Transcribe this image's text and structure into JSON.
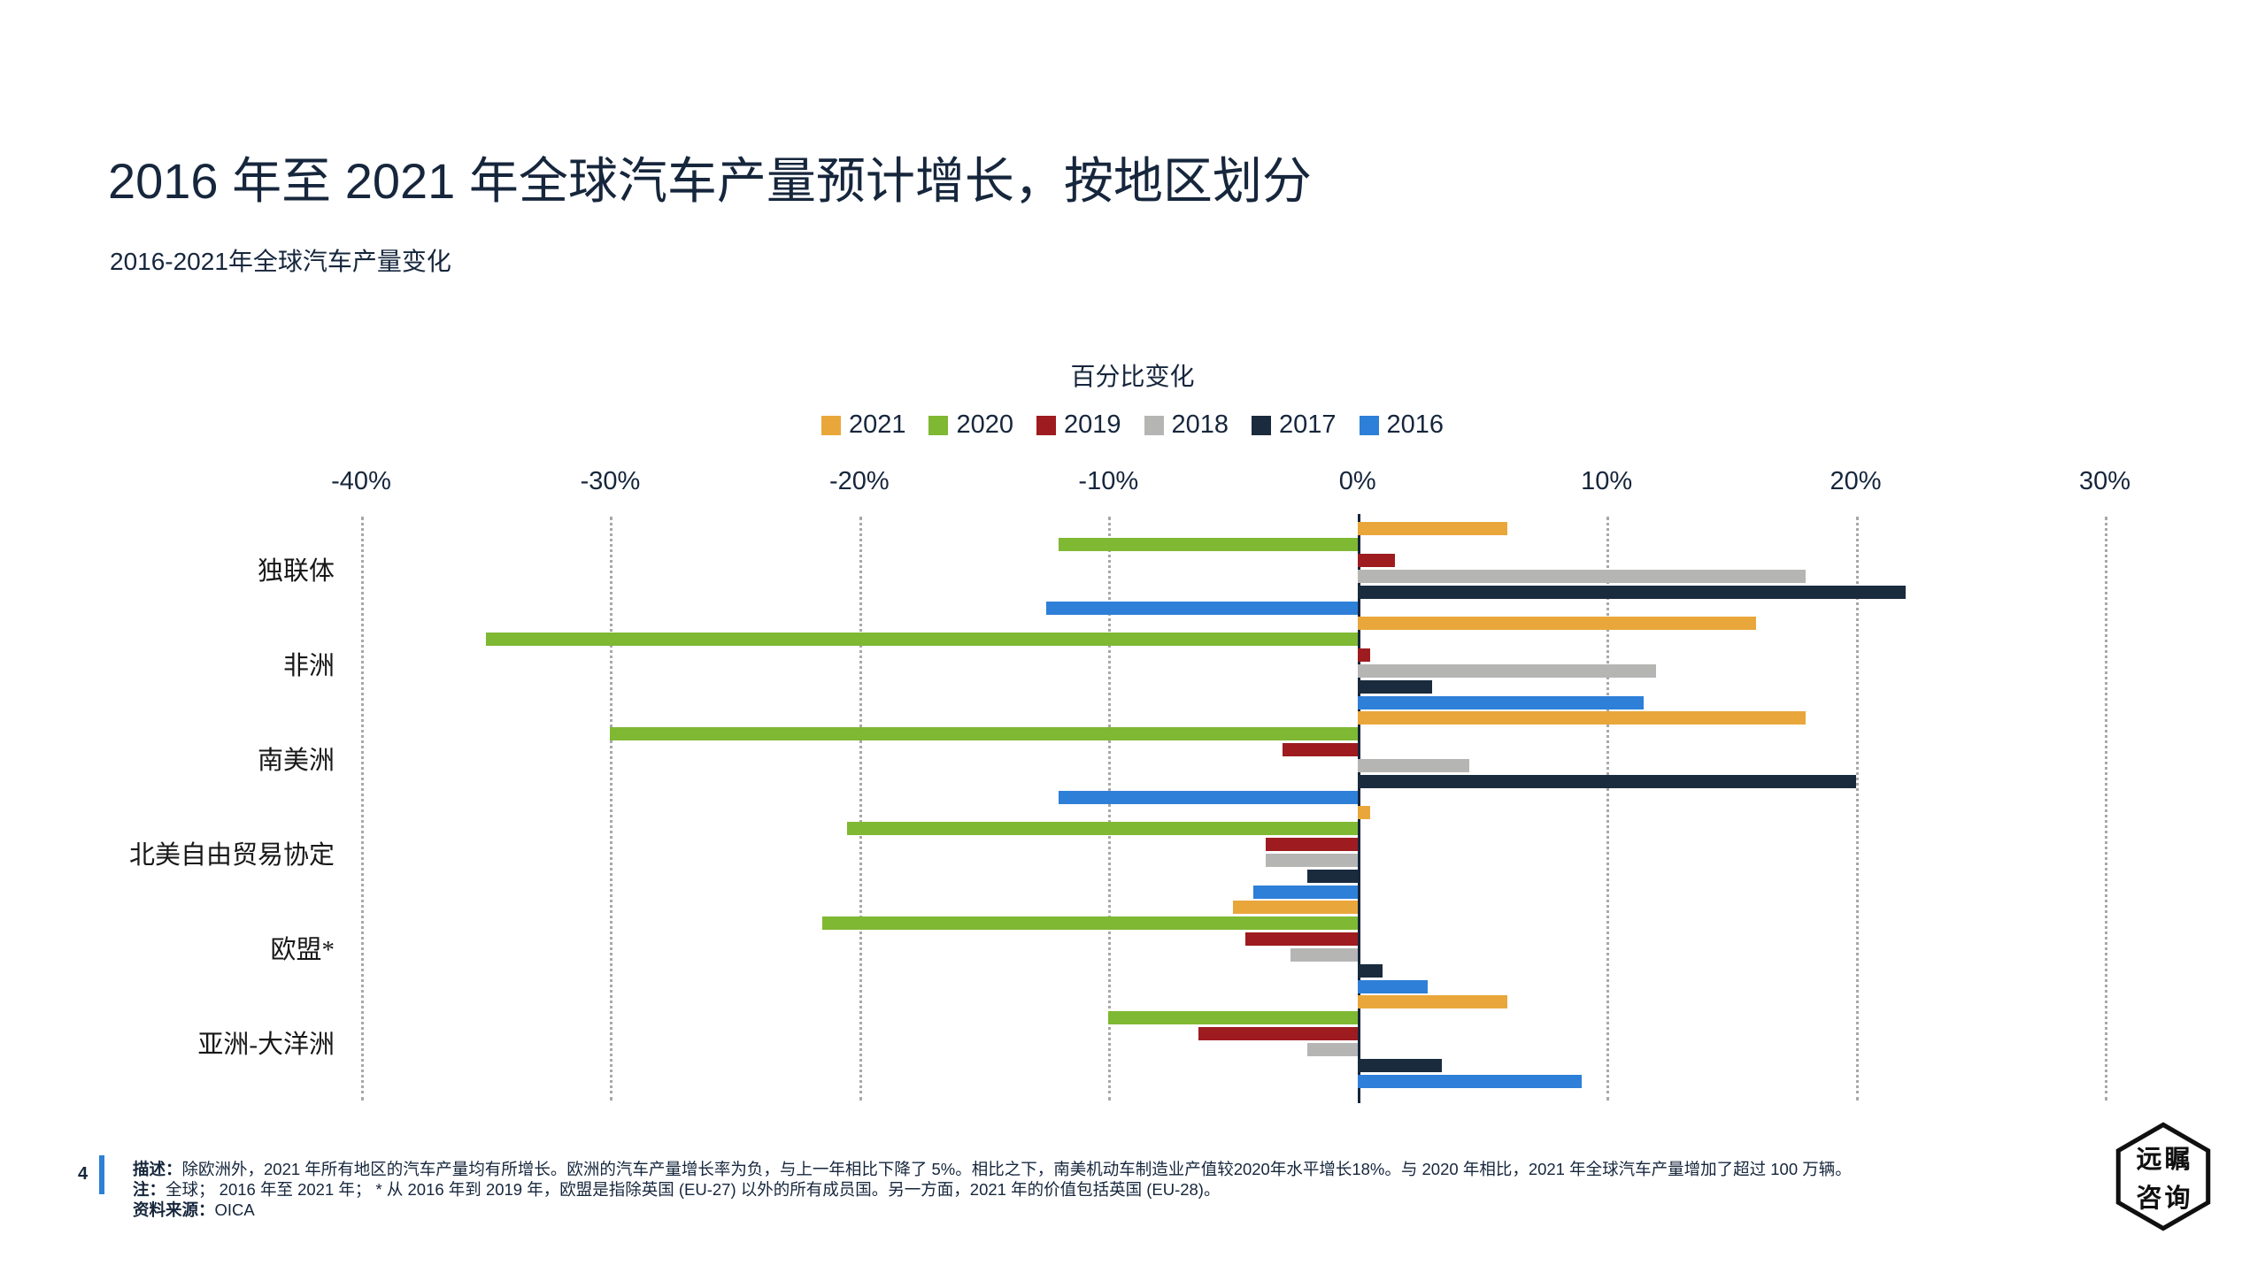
{
  "slide": {
    "title": "2016 年至 2021 年全球汽车产量预计增长，按地区划分",
    "subtitle": "2016-2021年全球汽车产量变化",
    "page_number": "4"
  },
  "chart_data": {
    "type": "bar",
    "orientation": "horizontal",
    "axis_title": "百分比变化",
    "unit": "%",
    "categories": [
      "独联体",
      "非洲",
      "南美洲",
      "北美自由贸易协定",
      "欧盟*",
      "亚洲-大洋洲"
    ],
    "series": [
      {
        "name": "2021",
        "color": "#E9A73B",
        "values": [
          6,
          16,
          18,
          0.5,
          -5,
          6
        ]
      },
      {
        "name": "2020",
        "color": "#7FB832",
        "values": [
          -12,
          -35,
          -30,
          -20.5,
          -21.5,
          -10
        ]
      },
      {
        "name": "2019",
        "color": "#9E1B1F",
        "values": [
          1.5,
          0.5,
          -3,
          -3.7,
          -4.5,
          -6.4
        ]
      },
      {
        "name": "2018",
        "color": "#B5B5B4",
        "values": [
          18,
          12,
          4.5,
          -3.7,
          -2.7,
          -2
        ]
      },
      {
        "name": "2017",
        "color": "#1B2B3E",
        "values": [
          22,
          3,
          20,
          -2,
          1,
          3.4
        ]
      },
      {
        "name": "2016",
        "color": "#2E7FD8",
        "values": [
          -12.5,
          11.5,
          -12,
          -4.2,
          2.8,
          9
        ]
      }
    ],
    "xlim": [
      -40,
      30
    ],
    "x_ticks": [
      -40,
      -30,
      -20,
      -10,
      0,
      10,
      20,
      30
    ],
    "x_tick_labels": [
      "-40%",
      "-30%",
      "-20%",
      "-10%",
      "0%",
      "10%",
      "20%",
      "30%"
    ],
    "grid": "vertical-dotted",
    "legend_position": "top-center"
  },
  "footer": {
    "notes": [
      {
        "label": "描述：",
        "text": "除欧洲外，2021 年所有地区的汽车产量均有所增长。欧洲的汽车产量增长率为负，与上一年相比下降了 5%。相比之下，南美机动车制造业产值较2020年水平增长18%。与 2020 年相比，2021 年全球汽车产量增加了超过 100 万辆。"
      },
      {
        "label": "注：",
        "text": "全球；  2016 年至 2021 年；  * 从 2016 年到 2019 年，欧盟是指除英国 (EU-27) 以外的所有成员国。另一方面，2021 年的价值包括英国 (EU-28)。"
      },
      {
        "label": "资料来源：",
        "text": "OICA"
      }
    ]
  },
  "logo": {
    "text_top": "远瞩",
    "text_bottom": "咨询"
  }
}
